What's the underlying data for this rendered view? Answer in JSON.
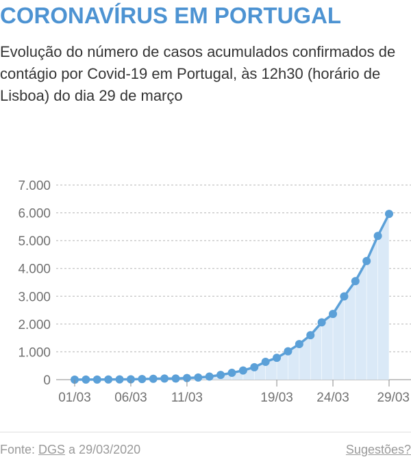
{
  "header": {
    "title": "CORONAVÍRUS EM PORTUGAL",
    "subtitle": "Evolução do número de casos acumulados confirmados de contágio por Covid-19 em Portugal, às 12h30 (horário de Lisboa) do dia 29 de março"
  },
  "footer": {
    "source_prefix": "Fonte: ",
    "source_link": "DGS",
    "source_suffix": " a 29/03/2020",
    "suggestions": "Sugestões?"
  },
  "colors": {
    "title": "#4d93d2",
    "line": "#5ba0d8",
    "area": "#dae9f7",
    "grid": "#b5b5b5"
  },
  "chart_data": {
    "type": "area",
    "title": "",
    "xlabel": "",
    "ylabel": "",
    "grid": true,
    "ylim": [
      0,
      7000
    ],
    "y_ticks": [
      0,
      1000,
      2000,
      3000,
      4000,
      5000,
      6000,
      7000
    ],
    "y_tick_labels": [
      "0",
      "1.000",
      "2.000",
      "3.000",
      "4.000",
      "5.000",
      "6.000",
      "7.000"
    ],
    "x_tick_labels": [
      "01/03",
      "06/03",
      "11/03",
      "19/03",
      "24/03",
      "29/03"
    ],
    "x": [
      "01/03",
      "02/03",
      "03/03",
      "04/03",
      "05/03",
      "06/03",
      "07/03",
      "08/03",
      "09/03",
      "10/03",
      "11/03",
      "12/03",
      "13/03",
      "14/03",
      "15/03",
      "16/03",
      "17/03",
      "18/03",
      "19/03",
      "20/03",
      "21/03",
      "22/03",
      "23/03",
      "24/03",
      "25/03",
      "26/03",
      "27/03",
      "28/03",
      "29/03"
    ],
    "series": [
      {
        "values": [
          0,
          2,
          4,
          6,
          9,
          13,
          21,
          30,
          39,
          41,
          59,
          78,
          112,
          169,
          245,
          331,
          448,
          642,
          785,
          1020,
          1280,
          1600,
          2060,
          2362,
          2995,
          3544,
          4268,
          5170,
          5962
        ]
      }
    ]
  }
}
